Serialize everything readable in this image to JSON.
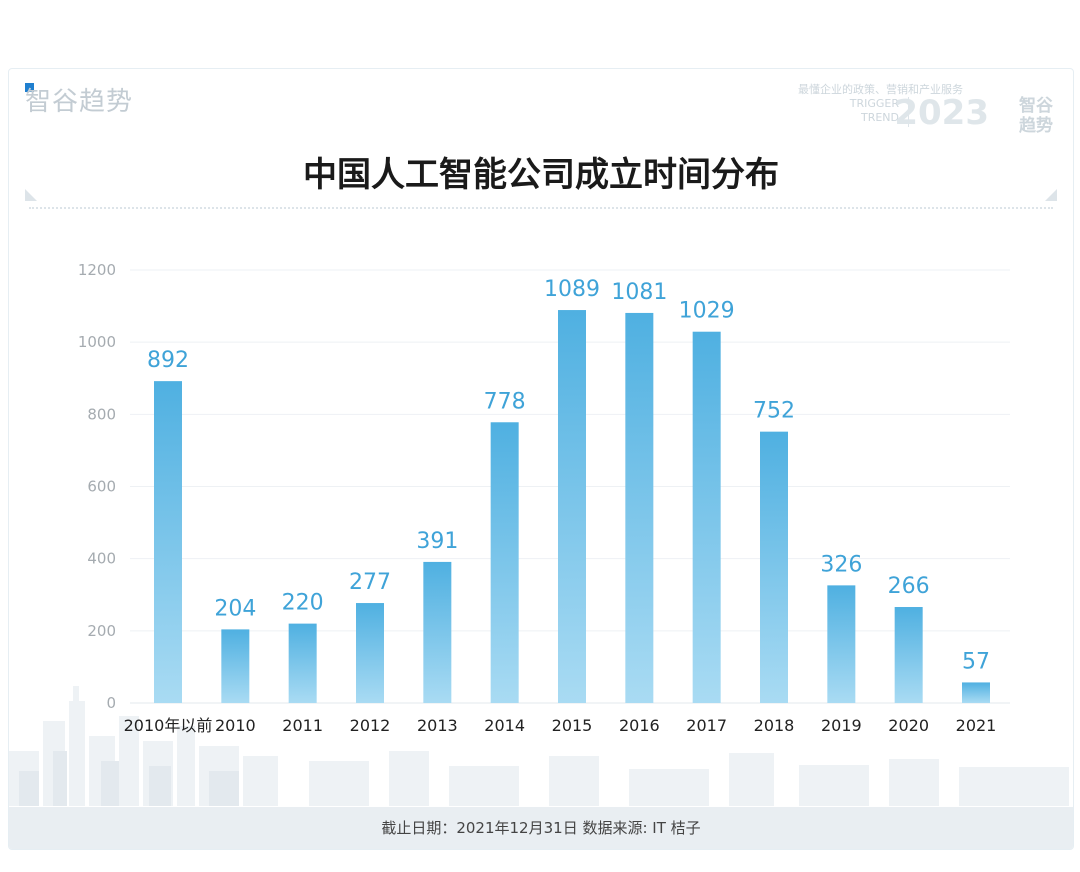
{
  "header": {
    "brand": "智谷趋势",
    "tagline": "最懂企业的政策、营销和产业服务",
    "en_line1": "TRIGGER",
    "en_line2": "TREND",
    "year": "2023",
    "mark1": "智谷",
    "mark2": "趋势"
  },
  "footer": {
    "note": "截止日期：2021年12月31日 数据来源: IT 桔子"
  },
  "colors": {
    "bar_top": "#4fb0e1",
    "bar_bottom": "#a9dbf3",
    "value_label": "#3fa3d8"
  },
  "chart_data": {
    "type": "bar",
    "title": "中国人工智能公司成立时间分布",
    "categories": [
      "2010年以前",
      "2010",
      "2011",
      "2012",
      "2013",
      "2014",
      "2015",
      "2016",
      "2017",
      "2018",
      "2019",
      "2020",
      "2021"
    ],
    "values": [
      892,
      204,
      220,
      277,
      391,
      778,
      1089,
      1081,
      1029,
      752,
      326,
      266,
      57
    ],
    "ylim": [
      0,
      1200
    ],
    "yticks": [
      0,
      200,
      400,
      600,
      800,
      1000,
      1200
    ],
    "grid": true,
    "xlabel": "",
    "ylabel": ""
  }
}
